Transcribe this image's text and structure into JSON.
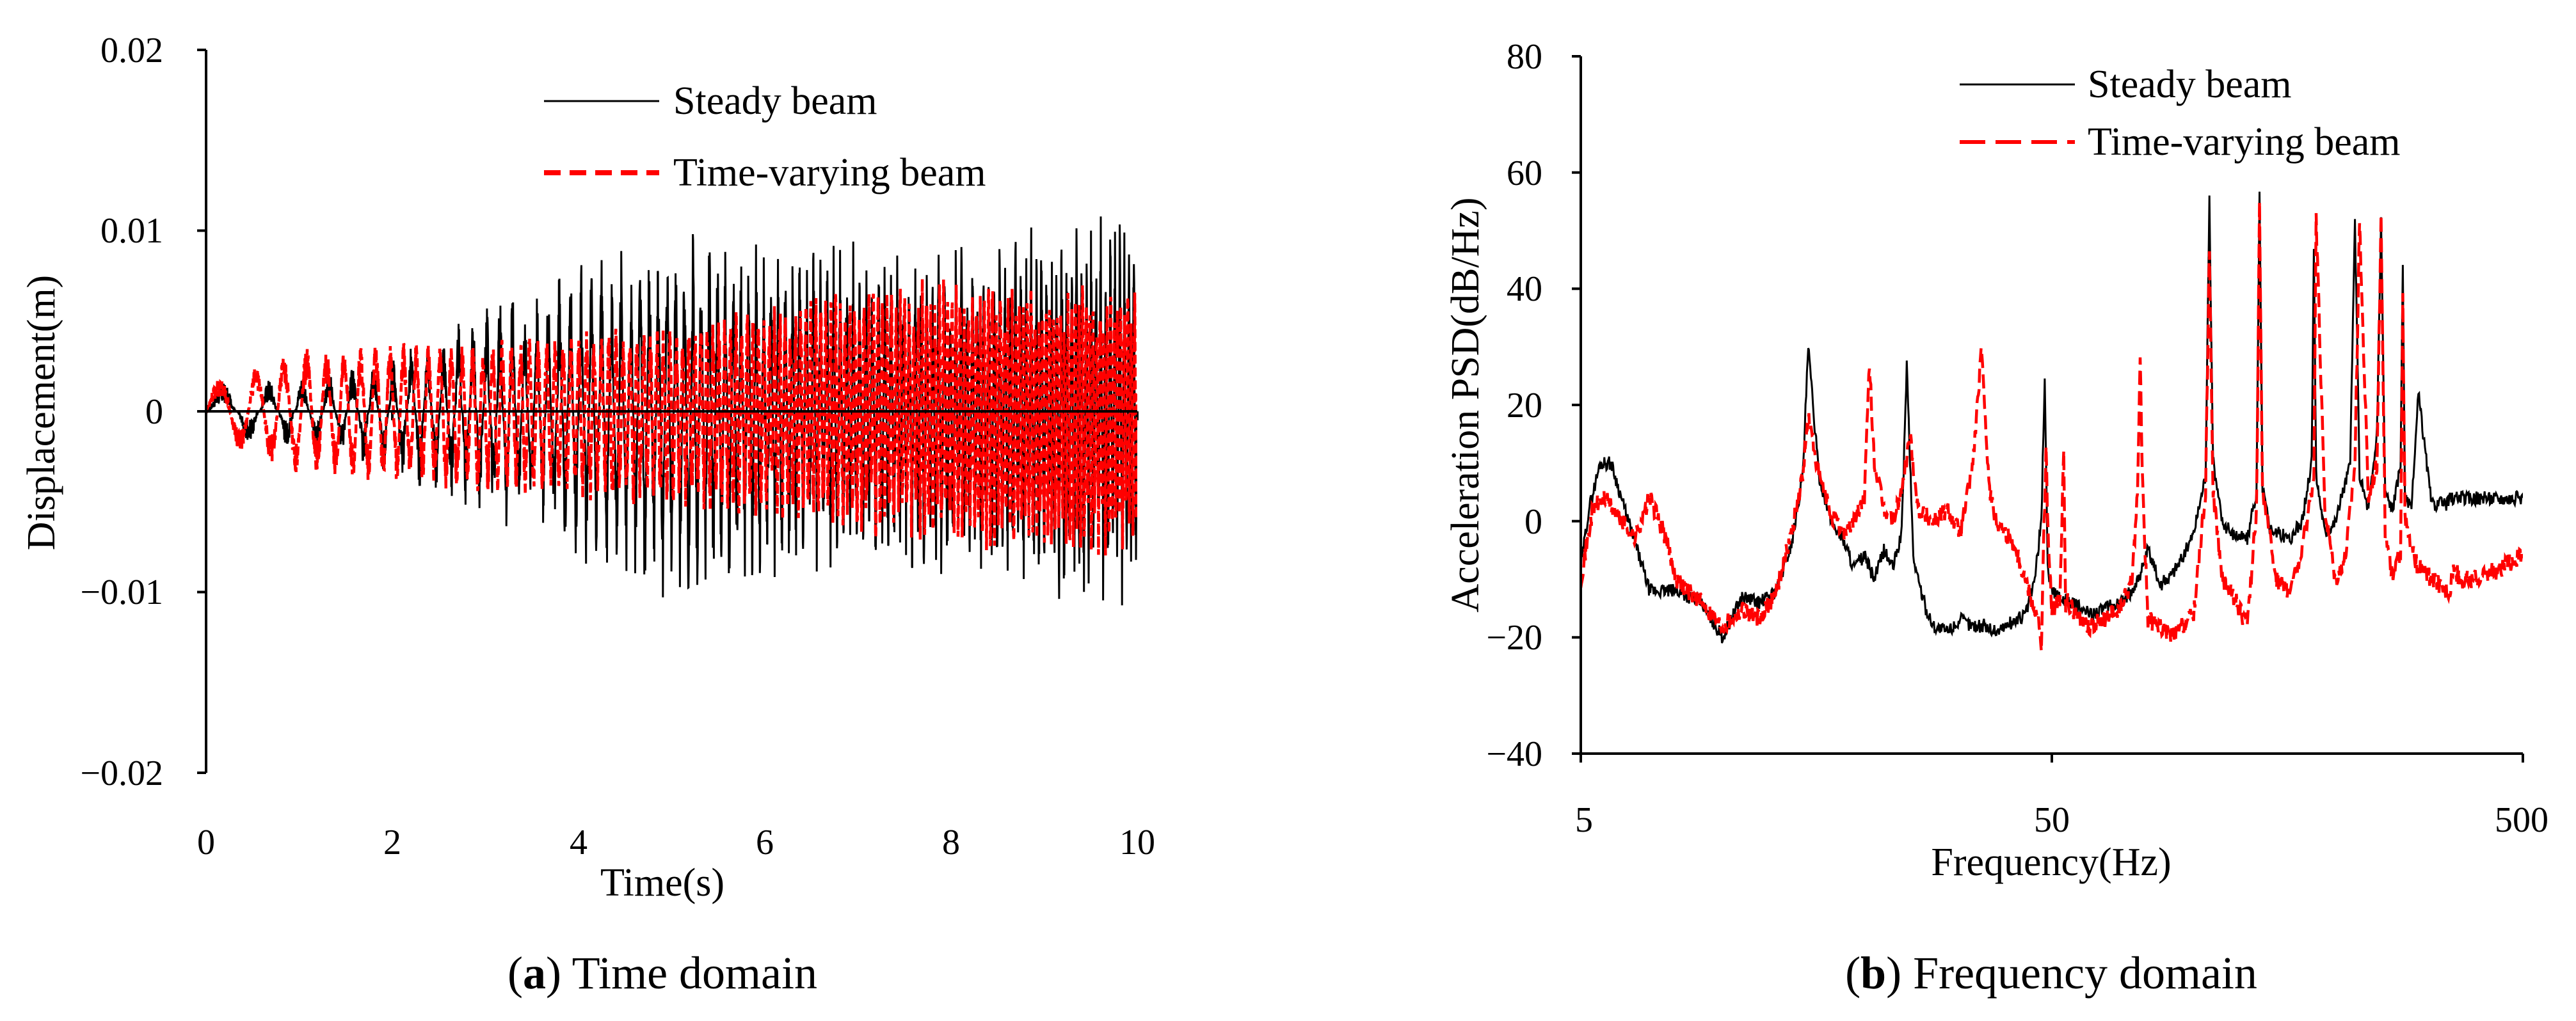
{
  "chart_data": [
    {
      "type": "line",
      "caption_letter": "a",
      "caption_rest": ") Time domain",
      "xlabel": "Time(s)",
      "ylabel": "Displacement(m)",
      "xlim": [
        0,
        10
      ],
      "ylim": [
        -0.02,
        0.02
      ],
      "xticks": [
        "0",
        "2",
        "4",
        "6",
        "8",
        "10"
      ],
      "yticks": [
        "−0.02",
        "−0.01",
        "0",
        "0.01",
        "0.02"
      ],
      "legend_position": "top-right",
      "series": [
        {
          "name": "Steady beam",
          "color": "#000000",
          "style": "solid",
          "envelope_x": [
            0,
            1,
            2,
            3,
            4,
            5,
            6,
            7,
            8,
            9,
            10
          ],
          "envelope_max": [
            0.0015,
            0.002,
            0.003,
            0.006,
            0.0085,
            0.01,
            0.0095,
            0.0095,
            0.009,
            0.0105,
            0.012
          ],
          "envelope_min": [
            -0.0015,
            -0.002,
            -0.0035,
            -0.006,
            -0.0085,
            -0.011,
            -0.0095,
            -0.009,
            -0.01,
            -0.011,
            -0.011
          ]
        },
        {
          "name": "Time-varying beam",
          "color": "#ff0000",
          "style": "dashed",
          "envelope_x": [
            0,
            1,
            2,
            3,
            4,
            5,
            6,
            7,
            8,
            9,
            10
          ],
          "envelope_max": [
            0.0015,
            0.0035,
            0.004,
            0.004,
            0.0045,
            0.005,
            0.006,
            0.007,
            0.0075,
            0.007,
            0.007
          ],
          "envelope_min": [
            -0.0015,
            -0.0035,
            -0.004,
            -0.0045,
            -0.005,
            -0.0055,
            -0.006,
            -0.007,
            -0.0075,
            -0.008,
            -0.008
          ]
        }
      ]
    },
    {
      "type": "line",
      "caption_letter": "b",
      "caption_rest": ") Frequency domain",
      "xlabel": "Frequency(Hz)",
      "ylabel": "Acceleration PSD(dB/Hz)",
      "xscale": "log",
      "xlim": [
        5,
        500
      ],
      "ylim": [
        -40,
        80
      ],
      "xticks": [
        "5",
        "50",
        "500"
      ],
      "yticks": [
        "−40",
        "−20",
        "0",
        "20",
        "40",
        "60",
        "80"
      ],
      "legend_position": "top-right",
      "series": [
        {
          "name": "Steady beam",
          "color": "#000000",
          "style": "solid",
          "x": [
            5,
            5.2,
            5.5,
            5.8,
            6.2,
            7,
            8,
            9,
            10,
            11,
            12,
            13,
            14,
            14.8,
            15.2,
            16,
            17,
            18,
            19,
            20,
            21,
            22,
            23,
            24,
            24.6,
            25.4,
            26,
            27,
            28,
            30,
            32,
            34,
            36,
            38,
            40,
            42,
            44,
            46,
            47.5,
            48.3,
            49,
            50,
            52,
            55,
            60,
            65,
            70,
            74,
            76,
            78,
            80,
            85,
            90,
            95,
            100,
            106,
            108,
            110,
            115,
            120,
            130,
            136,
            138,
            140,
            145,
            150,
            160,
            170,
            178,
            180,
            182,
            190,
            200,
            215,
            220,
            225,
            235,
            245,
            250,
            255,
            265,
            275,
            278,
            281,
            290,
            300,
            320,
            345,
            350,
            355,
            370,
            400,
            450,
            500
          ],
          "y": [
            -8,
            2,
            10,
            10,
            2,
            -12,
            -12,
            -14,
            -20,
            -13,
            -14,
            -12,
            -4,
            8,
            30,
            8,
            0,
            -3,
            -8,
            -6,
            -10,
            -5,
            -8,
            -2,
            27,
            -6,
            -10,
            -15,
            -18,
            -19,
            -17,
            -18,
            -18,
            -19,
            -18,
            -17,
            -16,
            -10,
            0,
            25,
            -8,
            -12,
            -13,
            -14,
            -16,
            -15,
            -14,
            -12,
            -10,
            -8,
            -5,
            -11,
            -9,
            -6,
            -2,
            8,
            55,
            10,
            0,
            -2,
            -3,
            5,
            56,
            6,
            -1,
            -2,
            -3,
            0,
            10,
            47,
            8,
            -2,
            0,
            10,
            52,
            8,
            2,
            15,
            52,
            5,
            2,
            10,
            44,
            4,
            2,
            22,
            3,
            3,
            4,
            4,
            4,
            4,
            4,
            4
          ]
        },
        {
          "name": "Time-varying beam",
          "color": "#ff0000",
          "style": "dashed",
          "x": [
            5,
            5.3,
            5.6,
            6,
            6.5,
            7,
            7.5,
            8,
            9,
            10,
            11,
            12,
            13,
            14,
            14.8,
            15.2,
            16,
            17,
            18,
            19,
            20,
            20.5,
            21,
            22,
            23,
            24,
            25,
            26,
            28,
            30,
            32,
            34,
            35.5,
            36,
            37,
            38,
            40,
            42,
            44,
            46,
            47,
            47.5,
            48,
            48.6,
            49.2,
            50,
            52,
            53,
            53.5,
            54,
            56,
            60,
            65,
            70,
            74,
            76,
            77,
            78,
            80,
            85,
            90,
            95,
            100,
            106,
            108,
            110,
            115,
            120,
            130,
            136,
            138,
            140,
            150,
            160,
            170,
            180,
            182,
            190,
            200,
            210,
            220,
            225,
            235,
            245,
            250,
            255,
            265,
            275,
            278,
            281,
            290,
            300,
            320,
            345,
            350,
            355,
            370,
            400,
            450,
            500
          ],
          "y": [
            -10,
            2,
            4,
            1,
            -3,
            4,
            -2,
            -10,
            -14,
            -18,
            -15,
            -17,
            -12,
            -2,
            8,
            18,
            8,
            1,
            -2,
            0,
            4,
            27,
            10,
            2,
            0,
            5,
            15,
            2,
            0,
            2,
            -2,
            10,
            30,
            18,
            5,
            0,
            -2,
            -5,
            -10,
            -15,
            -18,
            -22,
            -5,
            12,
            -5,
            -15,
            -14,
            12,
            -15,
            -14,
            -16,
            -18,
            -17,
            -15,
            -10,
            5,
            28,
            5,
            -17,
            -18,
            -20,
            -18,
            -16,
            5,
            47,
            5,
            -10,
            -12,
            -18,
            2,
            55,
            5,
            -10,
            -12,
            -5,
            8,
            52,
            2,
            -10,
            -6,
            10,
            51,
            4,
            10,
            53,
            -2,
            -10,
            -5,
            40,
            0,
            -5,
            -8,
            -10,
            -12,
            -12,
            -8,
            -10,
            -10,
            -8,
            -6
          ]
        }
      ]
    }
  ]
}
